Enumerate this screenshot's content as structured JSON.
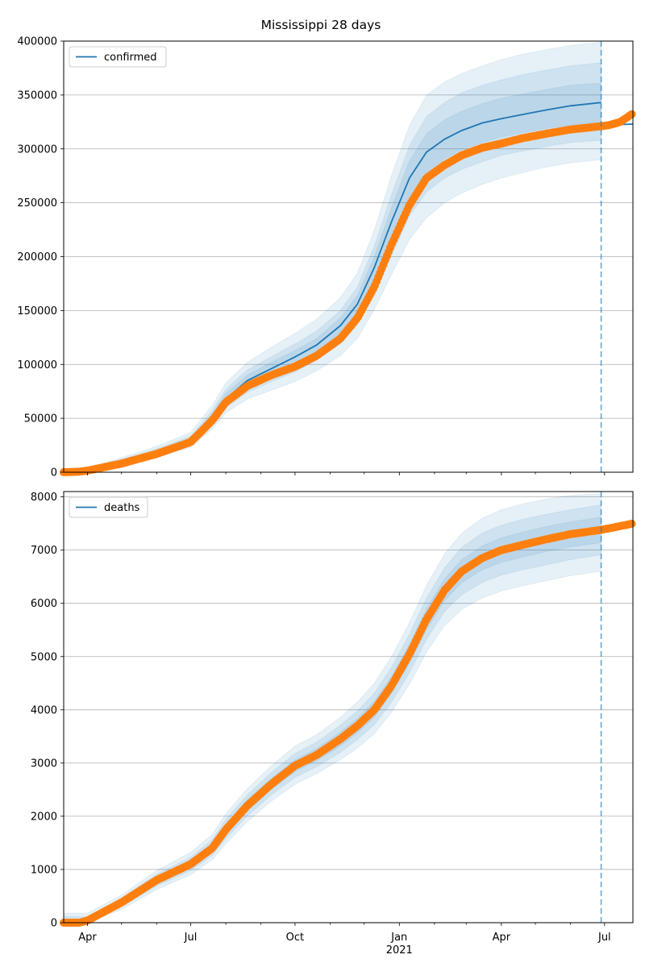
{
  "figure": {
    "title": "Mississippi 28 days"
  },
  "colors": {
    "model_line": "#1f77b4",
    "band": "#1f77b4",
    "observed": "#ff7f0e",
    "forecast_line": "#1f77b4",
    "grid": "#b0b0b0"
  },
  "chart_data": [
    {
      "type": "line",
      "name": "confirmed",
      "x_axis": {
        "type": "date",
        "range": [
          "2020-03-11",
          "2021-07-26"
        ],
        "tick_labels": [
          "Apr",
          "Jul",
          "Oct",
          "Jan",
          "Apr",
          "Jul"
        ],
        "tick_dates": [
          "2020-04-01",
          "2020-07-01",
          "2020-10-01",
          "2021-01-01",
          "2021-04-01",
          "2021-07-01"
        ],
        "year_label": "2021",
        "shown": false
      },
      "y_axis": {
        "range": [
          0,
          400000
        ],
        "ticks": [
          0,
          50000,
          100000,
          150000,
          200000,
          250000,
          300000,
          350000,
          400000
        ],
        "tick_labels": [
          "0",
          "50000",
          "100000",
          "150000",
          "200000",
          "250000",
          "300000",
          "350000",
          "400000"
        ]
      },
      "grid": "horizontal",
      "legend": {
        "position": "top-left",
        "entries": [
          "confirmed"
        ]
      },
      "forecast_date": "2021-06-28",
      "series": [
        {
          "name": "confirmed",
          "kind": "model_median",
          "x": [
            "2020-03-11",
            "2020-04-01",
            "2020-05-01",
            "2020-06-01",
            "2020-07-01",
            "2020-07-20",
            "2020-08-01",
            "2020-08-20",
            "2020-09-10",
            "2020-10-01",
            "2020-10-20",
            "2020-11-10",
            "2020-11-25",
            "2020-12-10",
            "2020-12-25",
            "2021-01-10",
            "2021-01-25",
            "2021-02-10",
            "2021-02-25",
            "2021-03-15",
            "2021-04-01",
            "2021-04-20",
            "2021-05-10",
            "2021-06-01",
            "2021-06-28"
          ],
          "values": [
            0,
            2000,
            9000,
            18000,
            29000,
            50000,
            68000,
            85000,
            96000,
            107000,
            118000,
            136000,
            156000,
            190000,
            232000,
            273000,
            297000,
            309000,
            317000,
            324000,
            328000,
            332000,
            336000,
            340000,
            343000
          ]
        },
        {
          "name": "confirmed",
          "kind": "projection_after_forecast",
          "x": [
            "2021-06-28",
            "2021-07-26"
          ],
          "values": [
            322000,
            323000
          ]
        },
        {
          "name": "observed confirmed",
          "kind": "observed",
          "x": [
            "2020-03-11",
            "2020-03-25",
            "2020-04-01",
            "2020-05-01",
            "2020-06-01",
            "2020-07-01",
            "2020-07-20",
            "2020-08-01",
            "2020-08-20",
            "2020-09-10",
            "2020-10-01",
            "2020-10-20",
            "2020-11-10",
            "2020-11-25",
            "2020-12-10",
            "2020-12-25",
            "2021-01-10",
            "2021-01-25",
            "2021-02-10",
            "2021-02-25",
            "2021-03-15",
            "2021-04-01",
            "2021-04-20",
            "2021-05-10",
            "2021-06-01",
            "2021-06-28",
            "2021-07-05",
            "2021-07-15",
            "2021-07-26"
          ],
          "values": [
            0,
            500,
            1500,
            8000,
            17000,
            28000,
            48000,
            65000,
            80000,
            90000,
            98000,
            108000,
            124000,
            143000,
            172000,
            211000,
            248000,
            273000,
            285000,
            294000,
            301000,
            305000,
            310000,
            314000,
            318000,
            321000,
            322000,
            325000,
            333000
          ]
        }
      ],
      "uncertainty_bands": [
        {
          "label": "outer",
          "lower": [
            0,
            1200,
            6500,
            14000,
            23000,
            40000,
            55000,
            68000,
            76000,
            84000,
            94000,
            108000,
            124000,
            151000,
            183000,
            216000,
            236000,
            250000,
            259000,
            267000,
            273000,
            278000,
            283000,
            287000,
            290000
          ],
          "upper": [
            2000,
            3500,
            13500,
            24000,
            37000,
            62000,
            83000,
            102000,
            116000,
            129000,
            142000,
            162000,
            185000,
            225000,
            275000,
            322000,
            350000,
            362000,
            370000,
            377000,
            383000,
            388000,
            392000,
            396000,
            399000
          ]
        },
        {
          "label": "middle",
          "lower": [
            0,
            1500,
            7500,
            15500,
            25500,
            44000,
            60000,
            74000,
            84000,
            93000,
            104000,
            119000,
            137000,
            166000,
            201000,
            238000,
            260000,
            273000,
            281000,
            288000,
            294000,
            298000,
            302000,
            306000,
            308000
          ],
          "upper": [
            1400,
            3000,
            12000,
            21500,
            33500,
            57000,
            77000,
            95000,
            107000,
            119000,
            131000,
            150000,
            172000,
            210000,
            257000,
            303000,
            330000,
            343000,
            352000,
            359000,
            364000,
            369000,
            373000,
            377000,
            380000
          ]
        },
        {
          "label": "inner",
          "lower": [
            0,
            1700,
            8200,
            16700,
            27300,
            47000,
            64000,
            79000,
            90000,
            100000,
            111000,
            127000,
            146000,
            178000,
            216000,
            256000,
            278000,
            291000,
            299000,
            306000,
            311000,
            315000,
            319000,
            322000,
            325000
          ],
          "upper": [
            700,
            2600,
            10500,
            19800,
            31500,
            54000,
            73000,
            90000,
            102000,
            113000,
            124000,
            143000,
            164000,
            200000,
            245000,
            289000,
            314000,
            327000,
            335000,
            342000,
            347000,
            351000,
            355000,
            359000,
            361000
          ]
        }
      ]
    },
    {
      "type": "line",
      "name": "deaths",
      "x_axis": {
        "type": "date",
        "range": [
          "2020-03-11",
          "2021-07-26"
        ],
        "tick_labels": [
          "Apr",
          "Jul",
          "Oct",
          "Jan",
          "Apr",
          "Jul"
        ],
        "tick_dates": [
          "2020-04-01",
          "2020-07-01",
          "2020-10-01",
          "2021-01-01",
          "2021-04-01",
          "2021-07-01"
        ],
        "year_label": "2021",
        "shown": true
      },
      "y_axis": {
        "range": [
          0,
          8100
        ],
        "ticks": [
          0,
          1000,
          2000,
          3000,
          4000,
          5000,
          6000,
          7000,
          8000
        ],
        "tick_labels": [
          "0",
          "1000",
          "2000",
          "3000",
          "4000",
          "5000",
          "6000",
          "7000",
          "8000"
        ]
      },
      "grid": "horizontal",
      "legend": {
        "position": "top-left",
        "entries": [
          "deaths"
        ]
      },
      "forecast_date": "2021-06-28",
      "series": [
        {
          "name": "deaths",
          "kind": "model_median",
          "x": [
            "2020-03-11",
            "2020-04-01",
            "2020-05-01",
            "2020-06-01",
            "2020-07-01",
            "2020-07-20",
            "2020-08-01",
            "2020-08-20",
            "2020-09-10",
            "2020-10-01",
            "2020-10-20",
            "2020-11-10",
            "2020-11-25",
            "2020-12-10",
            "2020-12-25",
            "2021-01-10",
            "2021-01-25",
            "2021-02-10",
            "2021-02-25",
            "2021-03-15",
            "2021-04-01",
            "2021-04-20",
            "2021-05-10",
            "2021-06-01",
            "2021-06-28"
          ],
          "values": [
            0,
            40,
            380,
            800,
            1100,
            1400,
            1750,
            2200,
            2600,
            2950,
            3150,
            3450,
            3700,
            4000,
            4450,
            5050,
            5700,
            6250,
            6600,
            6850,
            7000,
            7100,
            7200,
            7300,
            7380
          ]
        },
        {
          "name": "observed deaths",
          "kind": "observed",
          "x": [
            "2020-03-11",
            "2020-03-25",
            "2020-04-01",
            "2020-05-01",
            "2020-06-01",
            "2020-07-01",
            "2020-07-20",
            "2020-08-01",
            "2020-08-20",
            "2020-09-10",
            "2020-10-01",
            "2020-10-20",
            "2020-11-10",
            "2020-11-25",
            "2020-12-10",
            "2020-12-25",
            "2021-01-10",
            "2021-01-25",
            "2021-02-10",
            "2021-02-25",
            "2021-03-15",
            "2021-04-01",
            "2021-04-20",
            "2021-05-10",
            "2021-06-01",
            "2021-06-28",
            "2021-07-10",
            "2021-07-26"
          ],
          "values": [
            0,
            0,
            40,
            380,
            800,
            1100,
            1400,
            1750,
            2200,
            2600,
            2950,
            3150,
            3450,
            3700,
            4000,
            4450,
            5050,
            5700,
            6250,
            6600,
            6850,
            7000,
            7100,
            7200,
            7300,
            7380,
            7430,
            7500
          ]
        }
      ],
      "uncertainty_bands": [
        {
          "label": "outer",
          "lower": [
            0,
            0,
            250,
            620,
            900,
            1180,
            1480,
            1900,
            2280,
            2600,
            2800,
            3060,
            3280,
            3550,
            3950,
            4480,
            5080,
            5580,
            5880,
            6100,
            6230,
            6330,
            6420,
            6520,
            6600
          ],
          "upper": [
            180,
            180,
            520,
            980,
            1320,
            1660,
            2050,
            2520,
            2950,
            3320,
            3530,
            3860,
            4150,
            4500,
            5000,
            5640,
            6340,
            6930,
            7320,
            7600,
            7760,
            7870,
            7960,
            8030,
            8060
          ]
        },
        {
          "label": "middle",
          "lower": [
            0,
            10,
            300,
            690,
            980,
            1260,
            1580,
            2010,
            2400,
            2730,
            2930,
            3200,
            3440,
            3720,
            4140,
            4700,
            5320,
            5850,
            6160,
            6390,
            6530,
            6630,
            6720,
            6820,
            6910
          ],
          "upper": [
            120,
            110,
            460,
            910,
            1230,
            1560,
            1940,
            2400,
            2820,
            3180,
            3390,
            3710,
            3980,
            4310,
            4790,
            5420,
            6100,
            6670,
            7050,
            7320,
            7470,
            7580,
            7670,
            7760,
            7850
          ]
        },
        {
          "label": "inner",
          "lower": [
            0,
            20,
            340,
            740,
            1040,
            1330,
            1660,
            2100,
            2500,
            2840,
            3040,
            3320,
            3570,
            3860,
            4300,
            4880,
            5510,
            6050,
            6390,
            6630,
            6770,
            6870,
            6970,
            7060,
            7140
          ],
          "upper": [
            60,
            70,
            420,
            860,
            1170,
            1480,
            1840,
            2310,
            2710,
            3060,
            3270,
            3580,
            3840,
            4160,
            4620,
            5230,
            5900,
            6460,
            6820,
            7080,
            7230,
            7340,
            7440,
            7530,
            7620
          ]
        }
      ]
    }
  ]
}
